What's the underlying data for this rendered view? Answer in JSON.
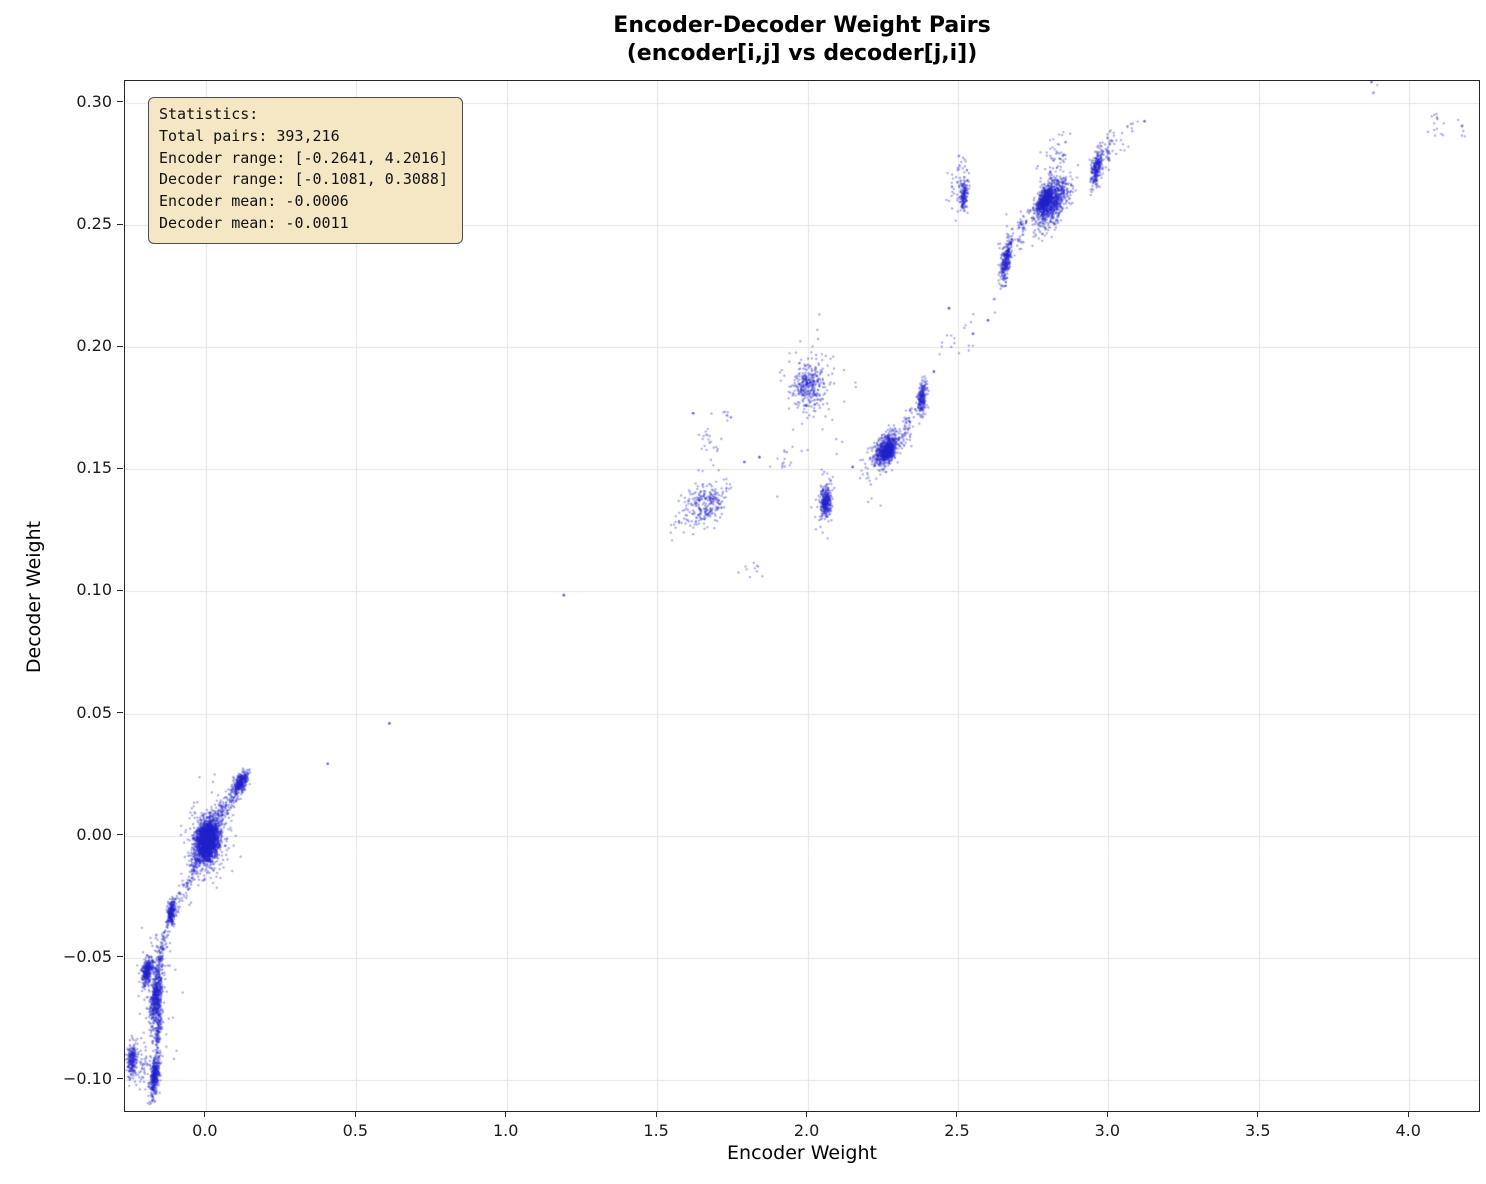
{
  "title": {
    "line1": "Encoder-Decoder Weight Pairs",
    "line2": "(encoder[i,j] vs decoder[j,i])"
  },
  "stats_box": {
    "lines": [
      "Statistics:",
      "Total pairs: 393,216",
      "Encoder range: [-0.2641, 4.2016]",
      "Decoder range: [-0.1081, 0.3088]",
      "Encoder mean: -0.0006",
      "Decoder mean: -0.0011"
    ]
  },
  "chart_data": {
    "type": "scatter",
    "title": "Encoder-Decoder Weight Pairs (encoder[i,j] vs decoder[j,i])",
    "xlabel": "Encoder Weight",
    "ylabel": "Decoder Weight",
    "xlim": [
      -0.2689,
      4.232
    ],
    "ylim": [
      -0.1127,
      0.309
    ],
    "grid": true,
    "legend": "none",
    "point_color": "#2323cc",
    "point_alpha": 0.42,
    "grid_color": "#e4e4e4",
    "xticks": {
      "values": [
        0.0,
        0.5,
        1.0,
        1.5,
        2.0,
        2.5,
        3.0,
        3.5,
        4.0
      ],
      "labels": [
        "0.0",
        "0.5",
        "1.0",
        "1.5",
        "2.0",
        "2.5",
        "3.0",
        "3.5",
        "4.0"
      ]
    },
    "yticks": {
      "values": [
        -0.1,
        -0.05,
        0.0,
        0.05,
        0.1,
        0.15,
        0.2,
        0.25,
        0.3
      ],
      "labels": [
        "−0.10",
        "−0.05",
        "0.00",
        "0.05",
        "0.10",
        "0.15",
        "0.20",
        "0.25",
        "0.30"
      ]
    },
    "annotation": {
      "total_pairs": "393,216",
      "encoder_range": "[-0.2641, 4.2016]",
      "decoder_range": "[-0.1081, 0.3088]",
      "encoder_mean": "-0.0006",
      "decoder_mean": "-0.0011"
    },
    "clusters": [
      {
        "cx": 0.005,
        "cy": -0.002,
        "sx": 0.02,
        "sy": 0.004,
        "n": 2200,
        "slope": 0.05
      },
      {
        "cx": 0.005,
        "cy": -0.002,
        "sx": 0.038,
        "sy": 0.009,
        "n": 250,
        "slope": 0.05
      },
      {
        "cx": 0.065,
        "cy": 0.012,
        "sx": 0.025,
        "sy": 0.0025,
        "n": 120,
        "slope": 0.12
      },
      {
        "cx": 0.115,
        "cy": 0.0215,
        "sx": 0.013,
        "sy": 0.002,
        "n": 350,
        "slope": 0.1
      },
      {
        "cx": -0.05,
        "cy": -0.016,
        "sx": 0.03,
        "sy": 0.003,
        "n": 130,
        "slope": 0.25
      },
      {
        "cx": -0.115,
        "cy": -0.0315,
        "sx": 0.007,
        "sy": 0.0025,
        "n": 260,
        "slope": 0.15
      },
      {
        "cx": -0.145,
        "cy": -0.046,
        "sx": 0.012,
        "sy": 0.003,
        "n": 80,
        "slope": 0.35
      },
      {
        "cx": -0.195,
        "cy": -0.0555,
        "sx": 0.009,
        "sy": 0.0025,
        "n": 320,
        "slope": 0.1
      },
      {
        "cx": -0.165,
        "cy": -0.0655,
        "sx": 0.01,
        "sy": 0.0055,
        "n": 520,
        "slope": 0.3
      },
      {
        "cx": -0.158,
        "cy": -0.079,
        "sx": 0.006,
        "sy": 0.004,
        "n": 120,
        "slope": 0.4
      },
      {
        "cx": -0.245,
        "cy": -0.0915,
        "sx": 0.008,
        "sy": 0.0035,
        "n": 220,
        "slope": 0.1
      },
      {
        "cx": -0.21,
        "cy": -0.094,
        "sx": 0.015,
        "sy": 0.004,
        "n": 50,
        "slope": 0.0
      },
      {
        "cx": -0.17,
        "cy": -0.098,
        "sx": 0.008,
        "sy": 0.0035,
        "n": 380,
        "slope": 0.25
      },
      {
        "cx": -0.17,
        "cy": -0.068,
        "sx": 0.03,
        "sy": 0.018,
        "n": 120,
        "slope": 0.2
      },
      {
        "cx": 1.66,
        "cy": 0.136,
        "sx": 0.035,
        "sy": 0.004,
        "n": 260,
        "slope": 0.03
      },
      {
        "cx": 1.67,
        "cy": 0.159,
        "sx": 0.02,
        "sy": 0.006,
        "n": 25,
        "slope": 0.0
      },
      {
        "cx": 1.56,
        "cy": 0.1265,
        "sx": 0.015,
        "sy": 0.002,
        "n": 10,
        "slope": 0.05
      },
      {
        "cx": 1.74,
        "cy": 0.172,
        "sx": 0.012,
        "sy": 0.002,
        "n": 8,
        "slope": 0.0
      },
      {
        "cx": 1.82,
        "cy": 0.109,
        "sx": 0.02,
        "sy": 0.0025,
        "n": 10,
        "slope": -0.02
      },
      {
        "cx": 2.0,
        "cy": 0.184,
        "sx": 0.026,
        "sy": 0.0045,
        "n": 300,
        "slope": 0.02
      },
      {
        "cx": 2.02,
        "cy": 0.184,
        "sx": 0.05,
        "sy": 0.009,
        "n": 70,
        "slope": 0.02
      },
      {
        "cx": 2.06,
        "cy": 0.1365,
        "sx": 0.009,
        "sy": 0.0028,
        "n": 280,
        "slope": 0.05
      },
      {
        "cx": 2.06,
        "cy": 0.1365,
        "sx": 0.02,
        "sy": 0.006,
        "n": 50,
        "slope": 0.05
      },
      {
        "cx": 1.94,
        "cy": 0.154,
        "sx": 0.03,
        "sy": 0.006,
        "n": 18,
        "slope": 0.0
      },
      {
        "cx": 2.26,
        "cy": 0.158,
        "sx": 0.02,
        "sy": 0.003,
        "n": 650,
        "slope": 0.08
      },
      {
        "cx": 2.27,
        "cy": 0.1575,
        "sx": 0.008,
        "sy": 0.0015,
        "n": 350,
        "slope": 0.08
      },
      {
        "cx": 2.33,
        "cy": 0.167,
        "sx": 0.015,
        "sy": 0.0035,
        "n": 60,
        "slope": 0.25
      },
      {
        "cx": 2.38,
        "cy": 0.179,
        "sx": 0.008,
        "sy": 0.003,
        "n": 220,
        "slope": 0.15
      },
      {
        "cx": 2.2,
        "cy": 0.146,
        "sx": 0.015,
        "sy": 0.006,
        "n": 18,
        "slope": 0.0
      },
      {
        "cx": 2.5,
        "cy": 0.202,
        "sx": 0.035,
        "sy": 0.004,
        "n": 16,
        "slope": 0.05
      },
      {
        "cx": 2.52,
        "cy": 0.262,
        "sx": 0.007,
        "sy": 0.003,
        "n": 160,
        "slope": 0.2
      },
      {
        "cx": 2.5,
        "cy": 0.268,
        "sx": 0.016,
        "sy": 0.006,
        "n": 45,
        "slope": 0.1
      },
      {
        "cx": 2.66,
        "cy": 0.236,
        "sx": 0.01,
        "sy": 0.003,
        "n": 260,
        "slope": 0.3
      },
      {
        "cx": 2.66,
        "cy": 0.236,
        "sx": 0.02,
        "sy": 0.007,
        "n": 60,
        "slope": 0.2
      },
      {
        "cx": 2.71,
        "cy": 0.2475,
        "sx": 0.008,
        "sy": 0.003,
        "n": 40,
        "slope": 0.2
      },
      {
        "cx": 2.81,
        "cy": 0.259,
        "sx": 0.03,
        "sy": 0.0045,
        "n": 800,
        "slope": 0.09
      },
      {
        "cx": 2.79,
        "cy": 0.2605,
        "sx": 0.013,
        "sy": 0.002,
        "n": 450,
        "slope": 0.09
      },
      {
        "cx": 2.82,
        "cy": 0.2765,
        "sx": 0.028,
        "sy": 0.005,
        "n": 60,
        "slope": 0.08
      },
      {
        "cx": 2.96,
        "cy": 0.2735,
        "sx": 0.01,
        "sy": 0.003,
        "n": 260,
        "slope": 0.2
      },
      {
        "cx": 3.0,
        "cy": 0.281,
        "sx": 0.012,
        "sy": 0.0035,
        "n": 45,
        "slope": 0.2
      },
      {
        "cx": 3.06,
        "cy": 0.2865,
        "sx": 0.02,
        "sy": 0.003,
        "n": 14,
        "slope": 0.1
      },
      {
        "cx": 4.09,
        "cy": 0.2925,
        "sx": 0.018,
        "sy": 0.0035,
        "n": 14,
        "slope": -0.1
      },
      {
        "cx": 4.18,
        "cy": 0.2885,
        "sx": 0.012,
        "sy": 0.002,
        "n": 7,
        "slope": -0.15
      },
      {
        "cx": 3.87,
        "cy": 0.3085,
        "sx": 0.012,
        "sy": 0.0025,
        "n": 6,
        "slope": 0.0
      }
    ],
    "points": [
      [
        0.405,
        0.0295
      ],
      [
        0.61,
        0.046
      ],
      [
        1.19,
        0.0985
      ],
      [
        3.12,
        0.2925
      ],
      [
        2.42,
        0.19
      ],
      [
        2.47,
        0.216
      ],
      [
        2.6,
        0.211
      ],
      [
        1.79,
        0.153
      ],
      [
        1.84,
        0.155
      ],
      [
        2.55,
        0.2055
      ],
      [
        2.15,
        0.151
      ],
      [
        1.62,
        0.173
      ]
    ]
  }
}
